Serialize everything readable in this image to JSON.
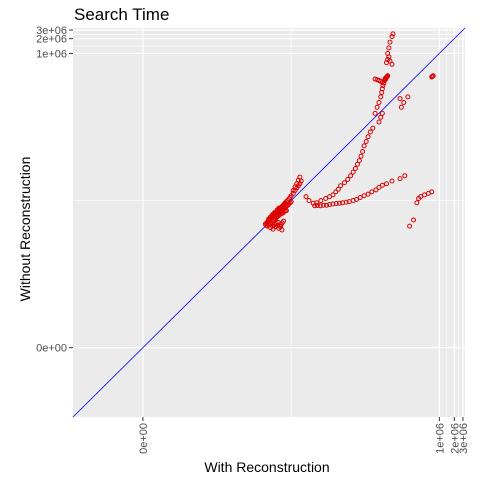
{
  "chart_data": {
    "type": "scatter",
    "title": "Search Time",
    "xlabel": "With Reconstruction",
    "ylabel": "Without Reconstruction",
    "scale": "pseudo-log",
    "x_ticks": [
      "0e+00",
      "1e+06",
      "2e+06",
      "3e+06"
    ],
    "y_ticks": [
      "0e+00",
      "1e+06",
      "2e+06",
      "3e+06"
    ],
    "xlim": [
      -25,
      3300000
    ],
    "ylim": [
      -25,
      3300000
    ],
    "grid": true,
    "reference_line": "y = x",
    "colors": {
      "points": "#dd0000",
      "reference_line": "#0000ff",
      "panel": "#ebebeb",
      "grid": "#ffffff"
    },
    "points": [
      [
        310,
        310
      ],
      [
        330,
        360
      ],
      [
        350,
        390
      ],
      [
        370,
        420
      ],
      [
        400,
        450
      ],
      [
        420,
        470
      ],
      [
        450,
        500
      ],
      [
        480,
        540
      ],
      [
        500,
        560
      ],
      [
        530,
        600
      ],
      [
        560,
        650
      ],
      [
        600,
        700
      ],
      [
        640,
        740
      ],
      [
        680,
        790
      ],
      [
        720,
        840
      ],
      [
        760,
        900
      ],
      [
        800,
        950
      ],
      [
        850,
        1000
      ],
      [
        900,
        1080
      ],
      [
        950,
        1150
      ],
      [
        1000,
        1250
      ],
      [
        1100,
        1400
      ],
      [
        1200,
        1600
      ],
      [
        1300,
        1800
      ],
      [
        1400,
        2000
      ],
      [
        1500,
        2200
      ],
      [
        1600,
        2500
      ],
      [
        330,
        300
      ],
      [
        360,
        320
      ],
      [
        380,
        340
      ],
      [
        420,
        380
      ],
      [
        460,
        430
      ],
      [
        500,
        470
      ],
      [
        540,
        520
      ],
      [
        580,
        560
      ],
      [
        620,
        610
      ],
      [
        660,
        650
      ],
      [
        700,
        690
      ],
      [
        740,
        700
      ],
      [
        780,
        740
      ],
      [
        820,
        780
      ],
      [
        860,
        800
      ],
      [
        900,
        850
      ],
      [
        950,
        900
      ],
      [
        1000,
        950
      ],
      [
        350,
        420
      ],
      [
        380,
        460
      ],
      [
        410,
        500
      ],
      [
        440,
        540
      ],
      [
        470,
        580
      ],
      [
        520,
        640
      ],
      [
        560,
        700
      ],
      [
        300,
        330
      ],
      [
        320,
        350
      ],
      [
        340,
        380
      ],
      [
        360,
        400
      ],
      [
        390,
        430
      ],
      [
        430,
        470
      ],
      [
        470,
        520
      ],
      [
        510,
        560
      ],
      [
        550,
        610
      ],
      [
        590,
        660
      ],
      [
        630,
        710
      ],
      [
        670,
        760
      ],
      [
        710,
        800
      ],
      [
        750,
        850
      ],
      [
        400,
        350
      ],
      [
        440,
        390
      ],
      [
        480,
        420
      ],
      [
        520,
        460
      ],
      [
        560,
        490
      ],
      [
        600,
        520
      ],
      [
        640,
        540
      ],
      [
        680,
        560
      ],
      [
        720,
        590
      ],
      [
        760,
        610
      ],
      [
        800,
        620
      ],
      [
        420,
        300
      ],
      [
        460,
        320
      ],
      [
        500,
        340
      ],
      [
        540,
        360
      ],
      [
        580,
        300
      ],
      [
        620,
        320
      ],
      [
        660,
        350
      ],
      [
        700,
        380
      ],
      [
        380,
        280
      ],
      [
        430,
        260
      ],
      [
        480,
        290
      ],
      [
        530,
        310
      ],
      [
        560,
        270
      ],
      [
        610,
        290
      ],
      [
        650,
        250
      ],
      [
        1100,
        1600
      ],
      [
        1200,
        1900
      ],
      [
        1300,
        2200
      ],
      [
        1400,
        2600
      ],
      [
        1500,
        3000
      ],
      [
        2000,
        1200
      ],
      [
        2300,
        1000
      ],
      [
        2800,
        880
      ],
      [
        3300,
        900
      ],
      [
        4000,
        1000
      ],
      [
        5000,
        1100
      ],
      [
        6000,
        1200
      ],
      [
        7000,
        1300
      ],
      [
        8000,
        1500
      ],
      [
        9000,
        1700
      ],
      [
        10000,
        2000
      ],
      [
        12000,
        2300
      ],
      [
        14000,
        2700
      ],
      [
        16000,
        3200
      ],
      [
        18000,
        3800
      ],
      [
        20000,
        4500
      ],
      [
        22000,
        5500
      ],
      [
        24000,
        6500
      ],
      [
        26000,
        8000
      ],
      [
        28000,
        10000
      ],
      [
        30000,
        13000
      ],
      [
        33000,
        16000
      ],
      [
        36000,
        20000
      ],
      [
        40000,
        25000
      ],
      [
        45000,
        30000
      ],
      [
        50000,
        60000
      ],
      [
        55000,
        80000
      ],
      [
        60000,
        100000
      ],
      [
        65000,
        130000
      ],
      [
        68000,
        160000
      ],
      [
        70000,
        190000
      ],
      [
        72000,
        220000
      ],
      [
        75000,
        250000
      ],
      [
        78000,
        280000
      ],
      [
        80000,
        310000
      ],
      [
        82000,
        300000
      ],
      [
        84000,
        320000
      ],
      [
        86000,
        330000
      ],
      [
        88000,
        340000
      ],
      [
        90000,
        350000
      ],
      [
        60000,
        40000
      ],
      [
        65000,
        50000
      ],
      [
        70000,
        60000
      ],
      [
        50000,
        300000
      ],
      [
        55000,
        290000
      ],
      [
        60000,
        280000
      ],
      [
        65000,
        270000
      ],
      [
        70000,
        260000
      ],
      [
        90000,
        1000000
      ],
      [
        95000,
        1300000
      ],
      [
        100000,
        1700000
      ],
      [
        110000,
        2200000
      ],
      [
        115000,
        2500000
      ],
      [
        85000,
        650000
      ],
      [
        90000,
        750000
      ],
      [
        95000,
        850000
      ],
      [
        100000,
        700000
      ],
      [
        110000,
        600000
      ],
      [
        160000,
        120000
      ],
      [
        190000,
        100000
      ],
      [
        230000,
        130000
      ],
      [
        170000,
        80000
      ],
      [
        700000,
        330000
      ],
      [
        720000,
        340000
      ],
      [
        750000,
        350000
      ],
      [
        250000,
        300
      ],
      [
        300000,
        400
      ],
      [
        350000,
        900
      ],
      [
        380000,
        1100
      ],
      [
        420000,
        1200
      ],
      [
        500000,
        1300
      ],
      [
        600000,
        1400
      ],
      [
        700000,
        1500
      ],
      [
        3000,
        780
      ],
      [
        3400,
        790
      ],
      [
        3900,
        780
      ],
      [
        4500,
        800
      ],
      [
        5200,
        800
      ],
      [
        6000,
        830
      ],
      [
        7000,
        850
      ],
      [
        8200,
        870
      ],
      [
        9500,
        880
      ],
      [
        11000,
        900
      ],
      [
        13000,
        920
      ],
      [
        15000,
        950
      ],
      [
        18000,
        1000
      ],
      [
        21000,
        1050
      ],
      [
        25000,
        1150
      ],
      [
        30000,
        1250
      ],
      [
        36000,
        1350
      ],
      [
        43000,
        1500
      ],
      [
        52000,
        1650
      ],
      [
        60000,
        1850
      ],
      [
        70000,
        2050
      ],
      [
        85000,
        2200
      ],
      [
        110000,
        2500
      ],
      [
        160000,
        2800
      ],
      [
        200000,
        3200
      ]
    ]
  }
}
